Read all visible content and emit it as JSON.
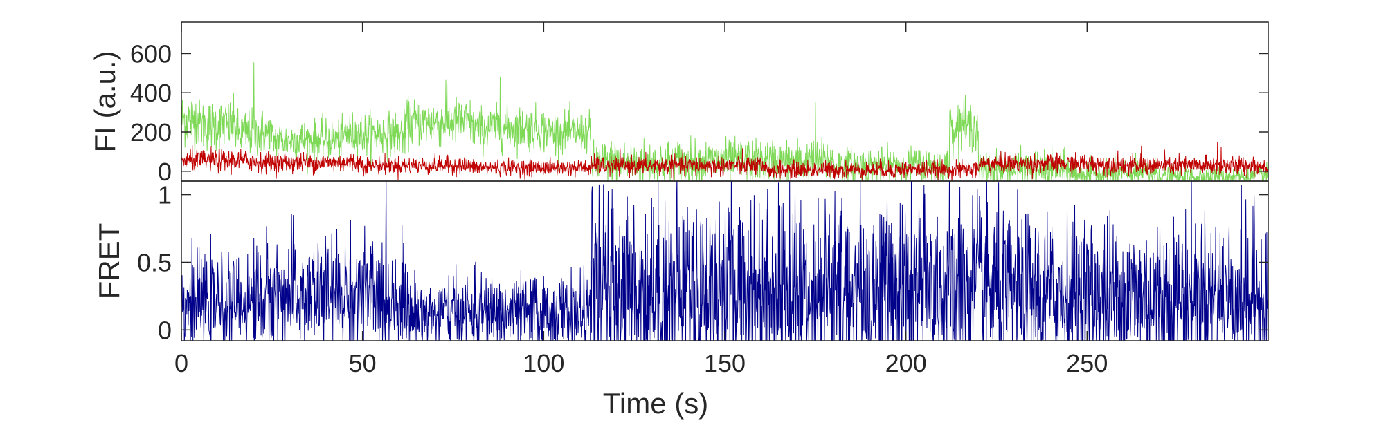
{
  "chart_data": [
    {
      "type": "line",
      "ylabel": "FI (a.u.)",
      "xlim": [
        0,
        300
      ],
      "ylim": [
        -50,
        760
      ],
      "yticks": [
        0,
        200,
        400,
        600
      ],
      "grid": false,
      "legend": "none",
      "series": [
        {
          "color": "#7ed957",
          "segments": [
            {
              "x0": 0,
              "x1": 5,
              "mean": 265,
              "std": 70
            },
            {
              "x0": 5,
              "x1": 15,
              "mean": 235,
              "std": 65
            },
            {
              "x0": 15,
              "x1": 25,
              "mean": 195,
              "std": 60
            },
            {
              "x0": 25,
              "x1": 45,
              "mean": 160,
              "std": 50
            },
            {
              "x0": 45,
              "x1": 62,
              "mean": 190,
              "std": 55
            },
            {
              "x0": 62,
              "x1": 80,
              "mean": 250,
              "std": 60
            },
            {
              "x0": 80,
              "x1": 100,
              "mean": 220,
              "std": 55
            },
            {
              "x0": 100,
              "x1": 113,
              "mean": 200,
              "std": 50
            },
            {
              "x0": 113,
              "x1": 140,
              "mean": 40,
              "std": 60
            },
            {
              "x0": 140,
              "x1": 180,
              "mean": 50,
              "std": 55
            },
            {
              "x0": 180,
              "x1": 212,
              "mean": 30,
              "std": 45
            },
            {
              "x0": 212,
              "x1": 220,
              "mean": 230,
              "std": 60
            },
            {
              "x0": 220,
              "x1": 245,
              "mean": 10,
              "std": 45
            },
            {
              "x0": 245,
              "x1": 270,
              "mean": -10,
              "std": 35
            },
            {
              "x0": 270,
              "x1": 300,
              "mean": -25,
              "std": 25
            }
          ],
          "peaks": [
            [
              20,
              555
            ],
            [
              73,
              465
            ],
            [
              88,
              480
            ],
            [
              175,
              355
            ],
            [
              216,
              370
            ]
          ]
        },
        {
          "color": "#c00000",
          "segments": [
            {
              "x0": 0,
              "x1": 20,
              "mean": 55,
              "std": 28
            },
            {
              "x0": 20,
              "x1": 50,
              "mean": 45,
              "std": 25
            },
            {
              "x0": 50,
              "x1": 80,
              "mean": 30,
              "std": 22
            },
            {
              "x0": 80,
              "x1": 113,
              "mean": 18,
              "std": 20
            },
            {
              "x0": 113,
              "x1": 160,
              "mean": 28,
              "std": 25
            },
            {
              "x0": 160,
              "x1": 220,
              "mean": 8,
              "std": 22
            },
            {
              "x0": 220,
              "x1": 260,
              "mean": 38,
              "std": 25
            },
            {
              "x0": 260,
              "x1": 300,
              "mean": 28,
              "std": 25
            }
          ],
          "peaks": [
            [
              265,
              130
            ],
            [
              287,
              125
            ],
            [
              286,
              150
            ]
          ]
        }
      ]
    },
    {
      "type": "line",
      "xlabel": "Time (s)",
      "ylabel": "FRET",
      "xlim": [
        0,
        300
      ],
      "ylim": [
        -0.08,
        1.1
      ],
      "xticks": [
        0,
        50,
        100,
        150,
        200,
        250
      ],
      "ytick_labels": [
        "0",
        "0.5",
        "1"
      ],
      "yticks": [
        0,
        0.5,
        1
      ],
      "grid": false,
      "legend": "none",
      "series": [
        {
          "color": "#00008b",
          "segments": [
            {
              "x0": 0,
              "x1": 20,
              "mean": 0.2,
              "std": 0.16
            },
            {
              "x0": 20,
              "x1": 62,
              "mean": 0.25,
              "std": 0.22
            },
            {
              "x0": 62,
              "x1": 113,
              "mean": 0.12,
              "std": 0.14
            },
            {
              "x0": 113,
              "x1": 225,
              "mean": 0.3,
              "std": 0.35
            },
            {
              "x0": 225,
              "x1": 300,
              "mean": 0.25,
              "std": 0.3
            }
          ]
        }
      ]
    }
  ]
}
